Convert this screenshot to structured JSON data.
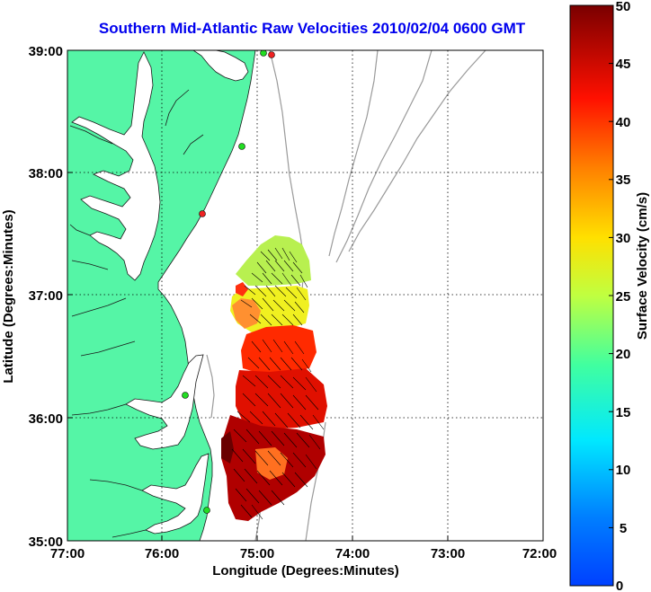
{
  "title": "Southern Mid-Atlantic Raw Velocities 2010/02/04 0600 GMT",
  "x_axis": {
    "label": "Longitude (Degrees:Minutes)",
    "ticks": [
      "77:00",
      "76:00",
      "75:00",
      "74:00",
      "73:00",
      "72:00"
    ]
  },
  "y_axis": {
    "label": "Latitude (Degrees:Minutes)",
    "ticks": [
      "39:00",
      "38:00",
      "37:00",
      "36:00",
      "35:00"
    ]
  },
  "colorbar": {
    "label": "Surface Velocity (cm/s)",
    "ticks": [
      "50",
      "45",
      "40",
      "35",
      "30",
      "25",
      "20",
      "15",
      "10",
      "5",
      "0"
    ],
    "range": [
      0,
      50
    ]
  },
  "colors": {
    "land": "#55f5a6",
    "title": "#0000ee",
    "bathymetry": "#9a9a9a",
    "station_green": "#22dd22",
    "station_red": "#ee2222"
  }
}
